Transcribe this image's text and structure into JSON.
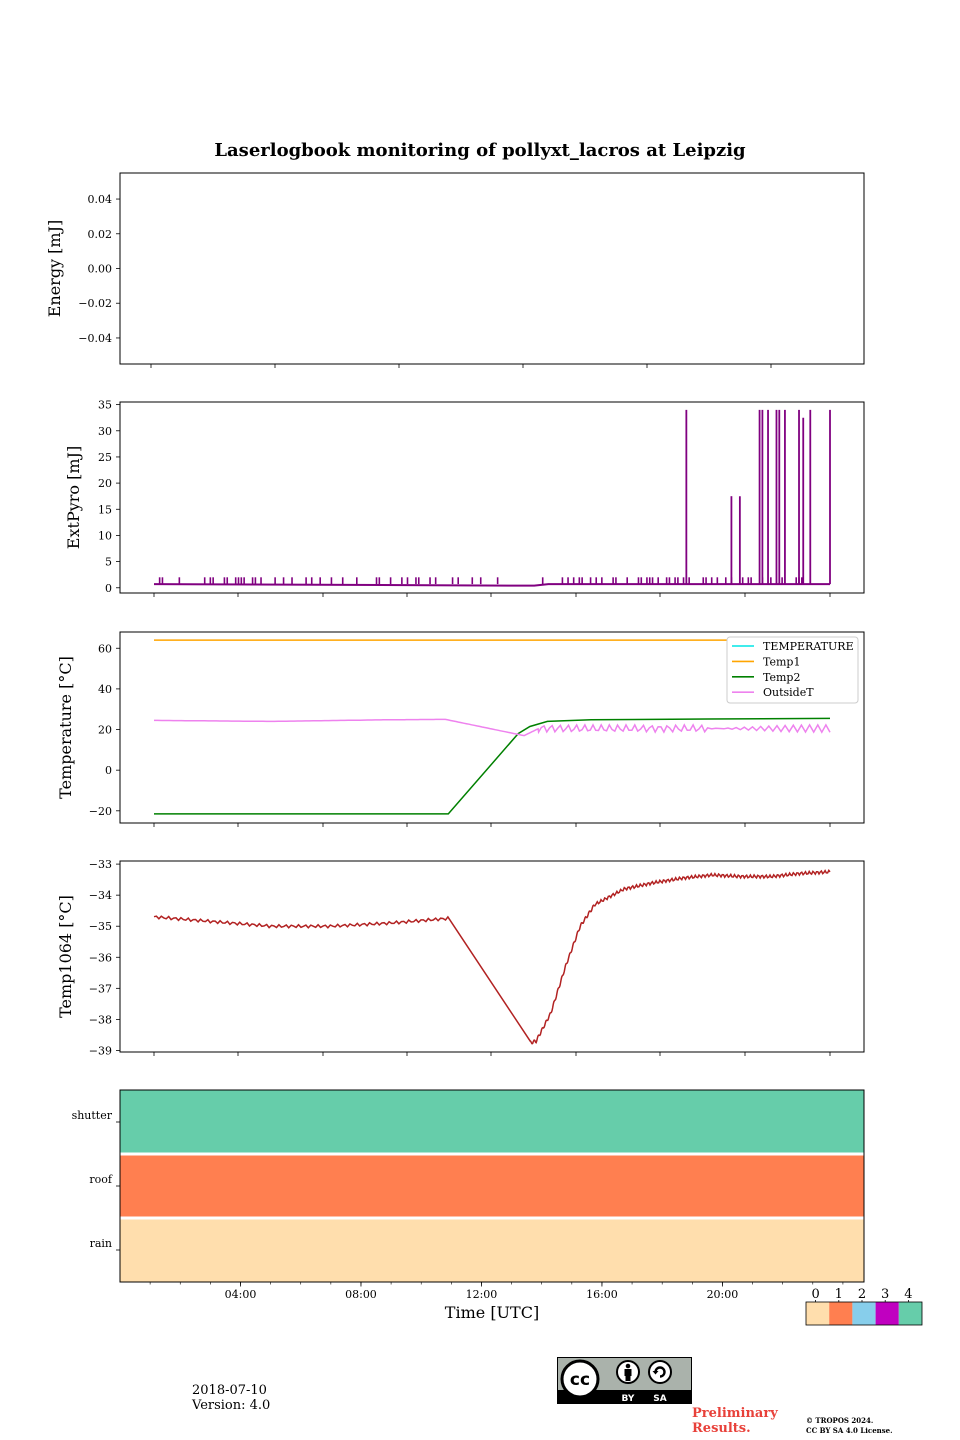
{
  "figure": {
    "title": "Laserlogbook monitoring of pollyxt_lacros at Leipzig",
    "date": "2018-07-10",
    "version": "Version: 4.0",
    "preliminary_line1": "Preliminary",
    "preliminary_line2": "Results.",
    "copyright_line1": "© TROPOS 2024.",
    "copyright_line2": "CC BY SA 4.0 License.",
    "license_badge": {
      "icon": "cc-by-sa-icon",
      "by_label": "BY",
      "sa_label": "SA"
    }
  },
  "chart_data": [
    {
      "type": "line",
      "title": "",
      "xlabel": "",
      "ylabel": "Energy [mJ]",
      "ylim": [
        -0.055,
        0.055
      ],
      "yticks": [
        -0.04,
        -0.02,
        0.0,
        0.02,
        0.04
      ],
      "ytick_labels": [
        "−0.04",
        "−0.02",
        "0.00",
        "0.02",
        "0.04"
      ],
      "xlim_hours": [
        0.0,
        24.0
      ],
      "xtick_positions_hours": [
        1,
        5,
        9,
        13,
        17,
        21
      ],
      "series": []
    },
    {
      "type": "line",
      "ylabel": "ExtPyro [mJ]",
      "ylim": [
        -1.0,
        35.5
      ],
      "yticks": [
        0,
        5,
        10,
        15,
        20,
        25,
        30,
        35
      ],
      "xlim_hours": [
        0.1,
        24.2
      ],
      "xtick_positions_hours": [
        1.2,
        4.2,
        7.2,
        10.2,
        13.2,
        16.2,
        19.2,
        22.2,
        25.2
      ],
      "color": "#800080",
      "baseline": 0.7,
      "baseline_dip": {
        "x_hours": 14.5,
        "y": 0.4
      },
      "small_spikes": {
        "height": 2.0,
        "x_hours": [
          1.2,
          1.3,
          1.9,
          2.8,
          3.0,
          3.1,
          3.5,
          3.6,
          3.9,
          4.0,
          4.1,
          4.2,
          4.5,
          4.6,
          4.8,
          5.3,
          5.6,
          5.9,
          6.4,
          6.6,
          6.9,
          7.3,
          7.7,
          8.2,
          8.9,
          9.0,
          9.4,
          9.8,
          10.0,
          10.3,
          10.4,
          10.8,
          11.0,
          11.6,
          11.8,
          12.3,
          12.6,
          13.2,
          14.8,
          15.5,
          15.7,
          15.9,
          16.1,
          16.2,
          16.5,
          16.7,
          16.9,
          17.3,
          17.4,
          17.8,
          18.2,
          18.3,
          18.5,
          18.6,
          18.7,
          18.9,
          19.2,
          19.3,
          19.5,
          19.6,
          19.8,
          20.0,
          20.5,
          20.6,
          20.8,
          21.0,
          21.3,
          21.5,
          21.9,
          22.1,
          22.2,
          22.6,
          22.9,
          23.3,
          23.8,
          23.9,
          24.0
        ]
      },
      "tall_spikes": [
        {
          "x_hours": 19.9,
          "y": 34.0
        },
        {
          "x_hours": 21.5,
          "y": 17.5
        },
        {
          "x_hours": 21.8,
          "y": 17.5
        },
        {
          "x_hours": 22.5,
          "y": 34.0
        },
        {
          "x_hours": 22.6,
          "y": 34.0
        },
        {
          "x_hours": 22.8,
          "y": 34.0
        },
        {
          "x_hours": 23.1,
          "y": 34.0
        },
        {
          "x_hours": 23.2,
          "y": 34.0
        },
        {
          "x_hours": 23.4,
          "y": 34.0
        },
        {
          "x_hours": 23.9,
          "y": 34.0
        },
        {
          "x_hours": 24.05,
          "y": 32.5
        },
        {
          "x_hours": 24.3,
          "y": 34.0
        },
        {
          "x_hours": 25.0,
          "y": 34.0
        }
      ]
    },
    {
      "type": "line",
      "ylabel": "Temperature [°C]",
      "ylim": [
        -26.0,
        68.0
      ],
      "yticks": [
        -20,
        0,
        20,
        40,
        60
      ],
      "ytick_labels": [
        "−20",
        "0",
        "20",
        "40",
        "60"
      ],
      "legend_position": "top-right",
      "series": [
        {
          "name": "TEMPERATURE",
          "color": "#00e5e5",
          "x_hours": [],
          "values": []
        },
        {
          "name": "Temp1",
          "color": "#ffa500",
          "x_hours": [
            1.0,
            24.2
          ],
          "values": [
            64.0,
            64.0
          ]
        },
        {
          "name": "Temp2",
          "color": "#008000",
          "x_hours": [
            1.0,
            11.1,
            13.5,
            13.9,
            14.5,
            16.0,
            20.0,
            24.2
          ],
          "values": [
            -21.5,
            -21.5,
            18.0,
            21.5,
            24.0,
            24.8,
            25.2,
            25.5
          ]
        },
        {
          "name": "OutsideT",
          "color": "#ee82ee",
          "x_hours": [
            1.0,
            5.0,
            9.0,
            11.0,
            13.7,
            14.2,
            17.0,
            20.0,
            24.2
          ],
          "values": [
            24.5,
            24.0,
            24.8,
            25.0,
            17.0,
            20.5,
            20.5,
            20.5,
            20.5
          ],
          "oscillation_amplitude_after_14h": 1.8
        }
      ]
    },
    {
      "type": "line",
      "ylabel": "Temp1064 [°C]",
      "ylim": [
        -39.05,
        -32.9
      ],
      "yticks": [
        -39,
        -38,
        -37,
        -36,
        -35,
        -34,
        -33
      ],
      "ytick_labels": [
        "−39",
        "−38",
        "−37",
        "−36",
        "−35",
        "−34",
        "−33"
      ],
      "color": "#b22222",
      "series": [
        {
          "name": "",
          "x_hours": [
            1.0,
            3.0,
            5.0,
            7.0,
            9.0,
            11.0,
            13.8,
            14.0,
            14.5,
            15.0,
            15.5,
            16.0,
            17.0,
            18.0,
            19.0,
            20.0,
            21.0,
            22.0,
            23.0,
            24.0
          ],
          "values": [
            -34.7,
            -34.85,
            -35.0,
            -35.0,
            -34.9,
            -34.75,
            -38.75,
            -38.7,
            -37.8,
            -36.3,
            -35.0,
            -34.3,
            -33.8,
            -33.6,
            -33.45,
            -33.35,
            -33.4,
            -33.4,
            -33.3,
            -33.25
          ]
        }
      ]
    },
    {
      "type": "heatmap",
      "xlabel": "Time [UTC]",
      "xlim_hours": [
        0.0,
        24.7
      ],
      "xtick_positions_hours": [
        4,
        8,
        12,
        16,
        20
      ],
      "xtick_labels": [
        "04:00",
        "08:00",
        "12:00",
        "16:00",
        "20:00"
      ],
      "rows": [
        "shutter",
        "roof",
        "rain"
      ],
      "row_values": [
        4,
        1,
        0
      ],
      "colorbar": {
        "ticks": [
          "0",
          "1",
          "2",
          "3",
          "4"
        ],
        "colors": [
          "#ffdead",
          "#ff7f50",
          "#87ceeb",
          "#c000c0",
          "#66cdaa"
        ]
      }
    }
  ]
}
